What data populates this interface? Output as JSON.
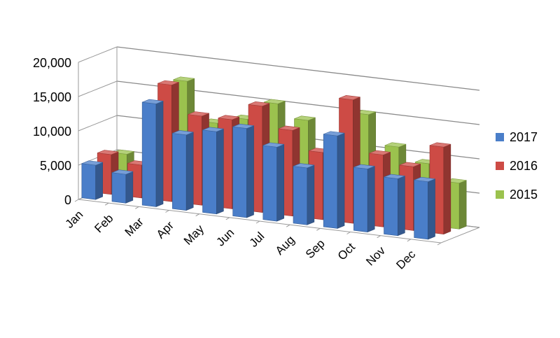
{
  "chart_data": {
    "type": "bar",
    "title": "",
    "xlabel": "",
    "ylabel": "",
    "ylim": [
      0,
      20000
    ],
    "yticks": [
      "0",
      "5,000",
      "10,000",
      "15,000",
      "20,000"
    ],
    "categories": [
      "Jan",
      "Feb",
      "Mar",
      "Apr",
      "May",
      "Jun",
      "Jul",
      "Aug",
      "Sep",
      "Oct",
      "Nov",
      "Dec"
    ],
    "series": [
      {
        "name": "2017",
        "color": "#4a7ec9",
        "values": [
          5000,
          4200,
          15000,
          11000,
          12000,
          13000,
          10800,
          8300,
          13500,
          9200,
          8300,
          8400
        ]
      },
      {
        "name": "2016",
        "color": "#cd4b45",
        "values": [
          5800,
          4800,
          17000,
          13000,
          13000,
          15500,
          12500,
          9800,
          18000,
          10500,
          9300,
          12700
        ]
      },
      {
        "name": "2015",
        "color": "#9bc24e",
        "values": [
          5100,
          0,
          16800,
          11200,
          12300,
          15100,
          13200,
          8900,
          15100,
          10900,
          9000,
          6700
        ]
      }
    ],
    "grid": true,
    "legend_position": "right",
    "style": "3d-clustered"
  }
}
